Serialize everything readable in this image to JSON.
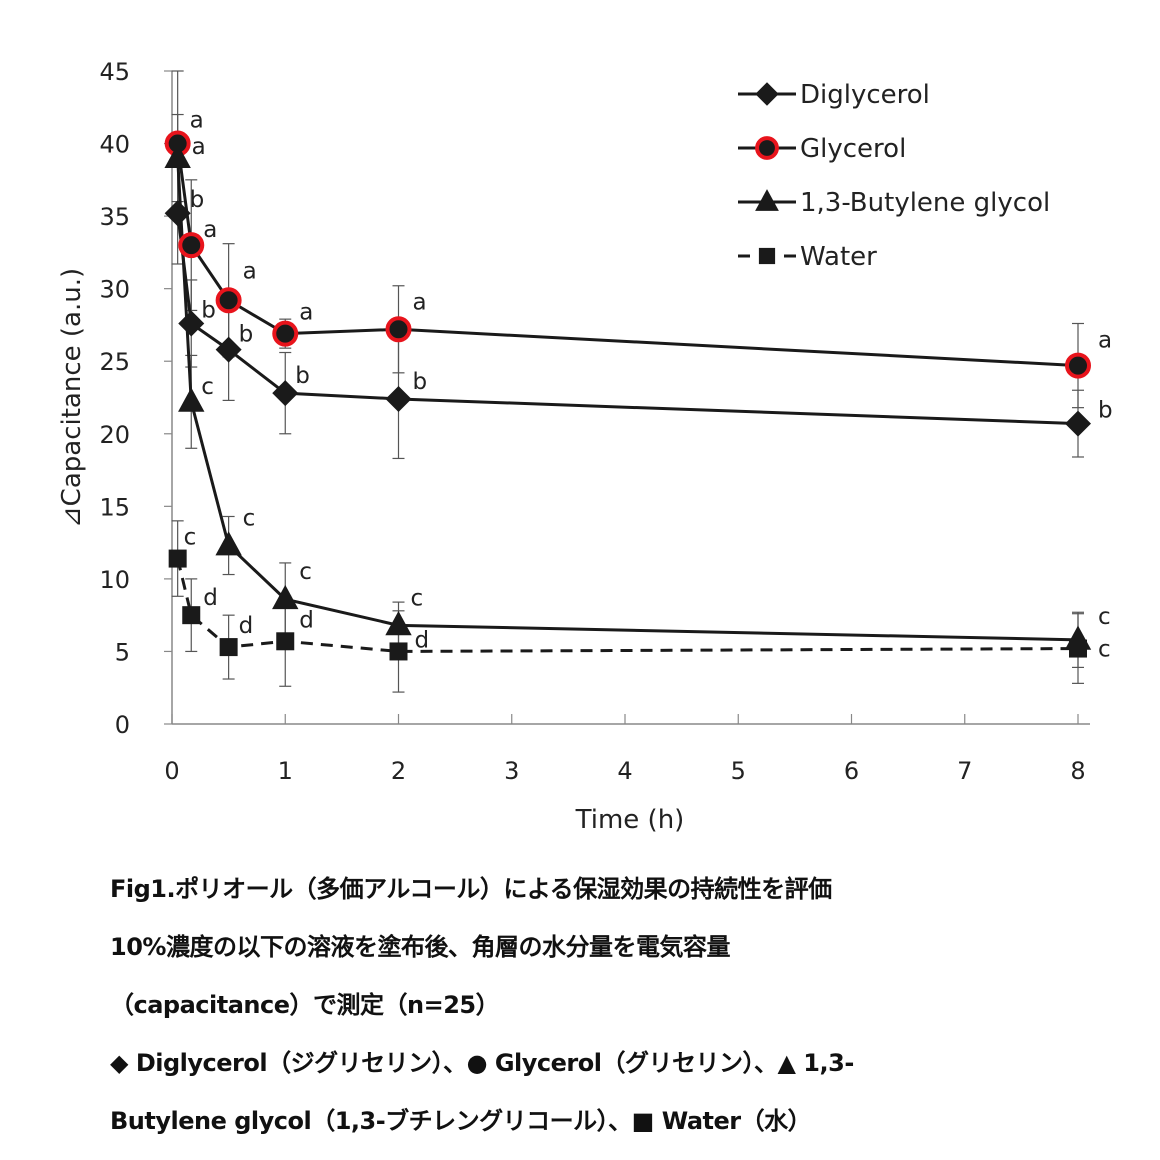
{
  "chart_data": {
    "type": "line",
    "title": "",
    "xlabel": "Time (h)",
    "ylabel": "⊿Capacitance (a.u.)",
    "xlim": [
      0,
      8
    ],
    "ylim": [
      0,
      45
    ],
    "xticks": [
      0,
      1,
      2,
      3,
      4,
      5,
      6,
      7,
      8
    ],
    "yticks": [
      0,
      5,
      10,
      15,
      20,
      25,
      30,
      35,
      40,
      45
    ],
    "grid": false,
    "legend_position": "top-right",
    "x": [
      0.05,
      0.17,
      0.5,
      1,
      2,
      8
    ],
    "series": [
      {
        "name": "Diglycerol",
        "marker": "diamond",
        "line": "solid",
        "color": "#000000",
        "values": [
          35.2,
          27.6,
          25.8,
          22.8,
          22.4,
          20.7
        ],
        "errors": [
          3.5,
          3.0,
          3.5,
          2.8,
          4.1,
          2.3
        ],
        "labels": [
          "b",
          "b",
          "b",
          "b",
          "b",
          "b"
        ]
      },
      {
        "name": "Glycerol",
        "marker": "circle",
        "line": "solid",
        "color": "#000000",
        "edge_color": "#e8141c",
        "values": [
          40.0,
          33.0,
          29.2,
          26.9,
          27.2,
          24.7
        ],
        "errors": [
          5.0,
          4.5,
          3.9,
          1.0,
          3.0,
          2.9
        ],
        "labels": [
          "a",
          "a",
          "a",
          "a",
          "a",
          "a"
        ]
      },
      {
        "name": "1,3-Butylene glycol",
        "marker": "triangle",
        "line": "solid",
        "color": "#000000",
        "values": [
          39.0,
          22.2,
          12.3,
          8.6,
          6.8,
          5.8
        ],
        "errors": [
          3.0,
          3.2,
          2.0,
          2.5,
          1.6,
          1.9
        ],
        "labels": [
          "a",
          "c",
          "c",
          "c",
          "c",
          "c"
        ]
      },
      {
        "name": "Water",
        "marker": "square",
        "line": "dashed",
        "color": "#000000",
        "values": [
          11.4,
          7.5,
          5.3,
          5.7,
          5.0,
          5.2
        ],
        "errors": [
          2.6,
          2.5,
          2.2,
          3.1,
          2.8,
          2.4
        ],
        "labels": [
          "c",
          "d",
          "d",
          "d",
          "d",
          "c"
        ]
      }
    ]
  },
  "caption": {
    "lines": [
      "Fig1.ポリオール（多価アルコール）による保湿効果の持続性を評価",
      "10%濃度の以下の溶液を塗布後、角層の水分量を電気容量",
      "（capacitance）で測定（n=25）",
      "◆ Diglycerol（ジグリセリン）、● Glycerol（グリセリン）、▲ 1,3-",
      "Butylene glycol（1,3-ブチレングリコール）、■ Water（水）"
    ]
  }
}
